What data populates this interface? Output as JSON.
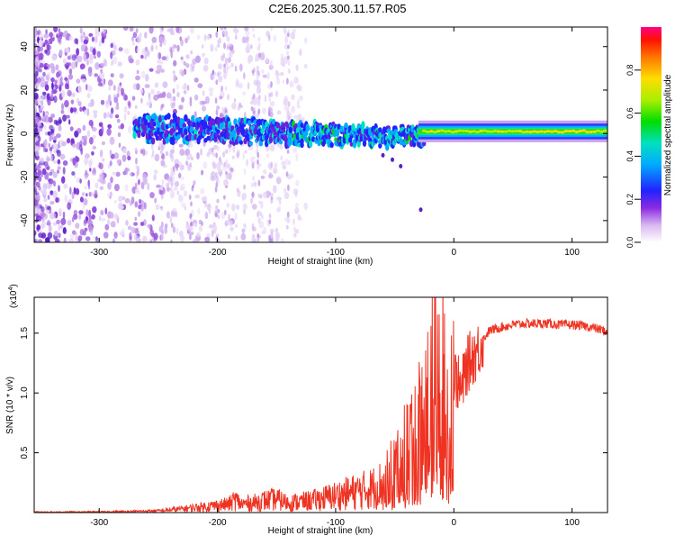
{
  "title": "C2E6.2025.300.11.57.R05",
  "colors": {
    "snr_line": "#ee3322",
    "axis": "#000000"
  },
  "chart_data": [
    {
      "type": "heatmap",
      "title": "C2E6.2025.300.11.57.R05",
      "xlabel": "Height of straight line (km)",
      "ylabel": "Frequency (Hz)",
      "xlim": [
        -355,
        130
      ],
      "ylim": [
        -50,
        49
      ],
      "x_ticks": [
        -300,
        -200,
        -100,
        0,
        100
      ],
      "y_ticks": [
        -40,
        -20,
        0,
        20,
        40
      ],
      "colorbar": {
        "label": "Normalized spectral amplitude",
        "range": [
          0,
          1
        ],
        "ticks": [
          0.0,
          0.2,
          0.4,
          0.6,
          0.8
        ]
      }
    },
    {
      "type": "line",
      "title": "",
      "xlabel": "Height of straight line (km)",
      "ylabel": "SNR (10 * v/v)",
      "y_multiplier": "(x10",
      "y_exponent": "4",
      "y_multiplier_close": ")",
      "xlim": [
        -355,
        130
      ],
      "ylim": [
        0,
        1.8
      ],
      "x_ticks": [
        -300,
        -200,
        -100,
        0,
        100
      ],
      "y_ticks": [
        0.5,
        1.0,
        1.5
      ],
      "y_tick_labels": [
        "0.5",
        "1.0",
        "1.5"
      ],
      "series": [
        {
          "name": "SNR",
          "x": [
            -355,
            -330,
            -300,
            -270,
            -250,
            -230,
            -210,
            -200,
            -190,
            -185,
            -180,
            -170,
            -160,
            -150,
            -140,
            -130,
            -120,
            -110,
            -100,
            -90,
            -80,
            -70,
            -60,
            -55,
            -50,
            -45,
            -40,
            -35,
            -30,
            -25,
            -20,
            -17,
            -15,
            -12,
            -10,
            -8,
            -5,
            -2,
            0,
            3,
            6,
            10,
            15,
            20,
            25,
            30,
            40,
            50,
            60,
            70,
            80,
            90,
            100,
            110,
            120,
            130
          ],
          "values": [
            0.005,
            0.005,
            0.006,
            0.01,
            0.015,
            0.03,
            0.05,
            0.06,
            0.07,
            0.11,
            0.07,
            0.08,
            0.1,
            0.11,
            0.08,
            0.09,
            0.1,
            0.12,
            0.14,
            0.16,
            0.18,
            0.2,
            0.24,
            0.3,
            0.4,
            0.45,
            0.55,
            0.62,
            0.7,
            0.85,
            1.0,
            1.1,
            1.2,
            1.1,
            1.15,
            1.05,
            1.1,
            1.05,
            1.15,
            1.1,
            1.0,
            1.2,
            1.3,
            1.35,
            1.45,
            1.52,
            1.55,
            1.57,
            1.58,
            1.58,
            1.58,
            1.57,
            1.57,
            1.56,
            1.54,
            1.51
          ]
        }
      ]
    }
  ]
}
